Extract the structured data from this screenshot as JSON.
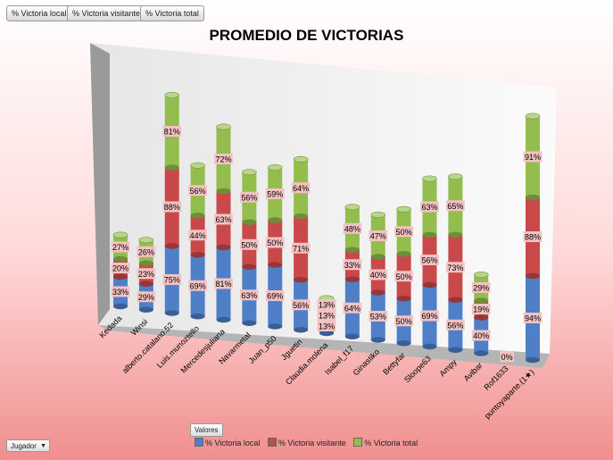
{
  "filter_buttons": [
    "% Victoria local",
    "% Victoria visitante",
    "% Victoria total"
  ],
  "valores_label": "Valores",
  "row_field": "Jugador",
  "colors": {
    "local": "#4f7fc7",
    "visitante": "#c9484a",
    "total": "#93bd4c",
    "label_bg": "#f3c2c2"
  },
  "chart_data": {
    "type": "bar",
    "stacked": true,
    "three_d": true,
    "title": "PROMEDIO DE VICTORIAS",
    "categories": [
      "Kedada",
      "Winsi",
      "alberto.catalano.52",
      "Luis.munoztello",
      "Mercedesjuliana",
      "Navarmetal",
      "Juan_p50",
      "Jguetin",
      "Claudia.molena",
      "Isabel_f17",
      "Ginastiko",
      "Bettyfar",
      "Sloope63",
      "Ampy",
      "Avibar",
      "Rof1633",
      "puntoyaparte.(1★)"
    ],
    "series": [
      {
        "name": "% Victoria local",
        "values": [
          33,
          29,
          75,
          69,
          81,
          63,
          69,
          56,
          13,
          64,
          53,
          50,
          69,
          56,
          40,
          0,
          94
        ]
      },
      {
        "name": "% Victoria visitante",
        "values": [
          20,
          23,
          88,
          44,
          63,
          50,
          50,
          71,
          13,
          33,
          40,
          50,
          56,
          73,
          19,
          0,
          88
        ]
      },
      {
        "name": "% Victoria total",
        "values": [
          27,
          26,
          81,
          56,
          72,
          56,
          59,
          64,
          13,
          48,
          47,
          50,
          63,
          65,
          29,
          0,
          91
        ]
      }
    ],
    "value_suffix": "%",
    "legend_position": "bottom"
  }
}
